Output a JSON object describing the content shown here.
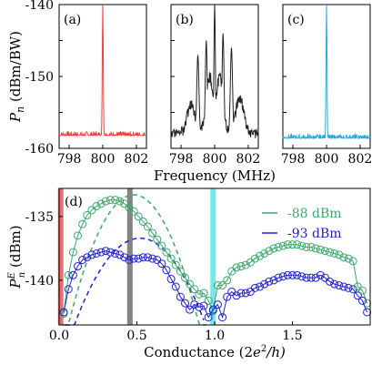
{
  "colors": {
    "red": "#ff3b3b",
    "black": "#222222",
    "cyan": "#22aaee",
    "green": "#3aa86b",
    "blue": "#2020d0",
    "marker_red": "#e86060",
    "marker_gray": "#777777",
    "marker_cyan": "#66e6e6"
  },
  "chart_data": [
    {
      "type": "line",
      "panel": "(a)",
      "x_ticks": [
        "798",
        "800",
        "802"
      ],
      "xlim": [
        797.4,
        802.6
      ],
      "y_ticks": [
        "-140",
        "-150",
        "-160"
      ],
      "ylim": [
        -160,
        -140
      ],
      "ylabel_main": "P",
      "ylabel_sub": "n",
      "ylabel_unit": " (dBm/BW)",
      "series": [
        {
          "color": "red",
          "noise_floor": -158.2,
          "peaks": [
            {
              "x": 800.0,
              "y": -140,
              "width": 0.04
            }
          ]
        }
      ]
    },
    {
      "type": "line",
      "panel": "(b)",
      "x_ticks": [
        "798",
        "800",
        "802"
      ],
      "xlim": [
        797.4,
        802.6
      ],
      "ylim": [
        -160,
        -140
      ],
      "xlabel": "Frequency (MHz)",
      "series": [
        {
          "color": "black",
          "noise_floor": -158.0,
          "peaks": [
            {
              "x": 800.0,
              "y": -140,
              "width": 0.06
            },
            {
              "x": 800.5,
              "y": -144,
              "width": 0.08
            },
            {
              "x": 799.5,
              "y": -145,
              "width": 0.08
            },
            {
              "x": 801.0,
              "y": -146,
              "width": 0.09
            },
            {
              "x": 799.0,
              "y": -147,
              "width": 0.09
            },
            {
              "x": 799.7,
              "y": -150,
              "width": 0.3
            },
            {
              "x": 800.3,
              "y": -150,
              "width": 0.3
            },
            {
              "x": 798.6,
              "y": -154,
              "width": 0.35
            },
            {
              "x": 801.5,
              "y": -153,
              "width": 0.35
            }
          ]
        }
      ]
    },
    {
      "type": "line",
      "panel": "(c)",
      "x_ticks": [
        "798",
        "800",
        "802"
      ],
      "xlim": [
        797.4,
        802.6
      ],
      "ylim": [
        -160,
        -140
      ],
      "series": [
        {
          "color": "cyan",
          "noise_floor": -158.6,
          "peaks": [
            {
              "x": 800.0,
              "y": -140,
              "width": 0.04
            }
          ]
        }
      ]
    },
    {
      "type": "line",
      "panel": "(d)",
      "xlim": [
        0,
        2.0
      ],
      "ylim": [
        -143.5,
        -132.8
      ],
      "x_ticks": [
        {
          "v": 0.0,
          "t": "0.0"
        },
        {
          "v": 0.5,
          "t": "0.5"
        },
        {
          "v": 1.0,
          "t": "1.0"
        },
        {
          "v": 1.5,
          "t": "1.5"
        }
      ],
      "y_ticks": [
        {
          "v": -135,
          "t": "-135"
        },
        {
          "v": -140,
          "t": "-140"
        }
      ],
      "xlabel_main": "Conductance (2",
      "xlabel_e": "e",
      "xlabel_sup": "2",
      "xlabel_end": "/h)",
      "ylabel_main": "P",
      "ylabel_sup": "E",
      "ylabel_sub": "n",
      "ylabel_unit": " (dBm)",
      "vertical_markers": [
        {
          "x": 0.01,
          "color": "marker_red"
        },
        {
          "x": 0.455,
          "color": "marker_gray"
        },
        {
          "x": 0.99,
          "color": "marker_cyan"
        }
      ],
      "legend_position": "top-right",
      "series": [
        {
          "name": "-88 dBm",
          "color": "green",
          "x": [
            0.03,
            0.06,
            0.09,
            0.12,
            0.15,
            0.18,
            0.21,
            0.24,
            0.27,
            0.3,
            0.33,
            0.36,
            0.39,
            0.42,
            0.45,
            0.48,
            0.51,
            0.54,
            0.57,
            0.6,
            0.63,
            0.66,
            0.69,
            0.72,
            0.75,
            0.78,
            0.81,
            0.84,
            0.87,
            0.9,
            0.93,
            0.96,
            0.99,
            1.02,
            1.05,
            1.08,
            1.11,
            1.14,
            1.17,
            1.2,
            1.23,
            1.26,
            1.29,
            1.32,
            1.35,
            1.38,
            1.41,
            1.44,
            1.47,
            1.5,
            1.53,
            1.56,
            1.59,
            1.62,
            1.65,
            1.68,
            1.71,
            1.74,
            1.77,
            1.8,
            1.83,
            1.86,
            1.89,
            1.92,
            1.95,
            1.98
          ],
          "y": [
            -142.6,
            -139.6,
            -137.8,
            -136.5,
            -135.6,
            -134.9,
            -134.5,
            -134.2,
            -134.0,
            -133.8,
            -133.7,
            -133.7,
            -133.8,
            -134.0,
            -134.3,
            -134.6,
            -135.0,
            -135.4,
            -135.8,
            -136.3,
            -136.8,
            -137.3,
            -137.8,
            -138.3,
            -138.8,
            -139.3,
            -139.8,
            -140.3,
            -140.7,
            -141.1,
            -141.0,
            -141.6,
            -142.4,
            -140.4,
            -140.4,
            -140.0,
            -139.3,
            -139.0,
            -138.9,
            -138.8,
            -138.6,
            -138.3,
            -138.1,
            -137.9,
            -137.7,
            -137.5,
            -137.4,
            -137.3,
            -137.2,
            -137.2,
            -137.2,
            -137.3,
            -137.4,
            -137.4,
            -137.5,
            -137.6,
            -137.7,
            -137.8,
            -137.9,
            -138.0,
            -138.2,
            -138.3,
            -138.5,
            -140.5,
            -140.8,
            -141.8
          ]
        },
        {
          "name": "-93 dBm",
          "color": "blue",
          "x": [
            0.03,
            0.06,
            0.09,
            0.12,
            0.15,
            0.18,
            0.21,
            0.24,
            0.27,
            0.3,
            0.33,
            0.36,
            0.39,
            0.42,
            0.45,
            0.48,
            0.51,
            0.54,
            0.57,
            0.6,
            0.63,
            0.66,
            0.69,
            0.72,
            0.75,
            0.78,
            0.81,
            0.84,
            0.87,
            0.9,
            0.93,
            0.96,
            0.99,
            1.02,
            1.05,
            1.08,
            1.11,
            1.14,
            1.17,
            1.2,
            1.23,
            1.26,
            1.29,
            1.32,
            1.35,
            1.38,
            1.41,
            1.44,
            1.47,
            1.5,
            1.53,
            1.56,
            1.59,
            1.62,
            1.65,
            1.68,
            1.71,
            1.74,
            1.77,
            1.8,
            1.83,
            1.86,
            1.89,
            1.92,
            1.95,
            1.98
          ],
          "y": [
            -142.5,
            -140.7,
            -139.6,
            -138.9,
            -138.4,
            -138.2,
            -138.0,
            -137.9,
            -137.8,
            -137.7,
            -137.8,
            -137.9,
            -138.0,
            -138.2,
            -138.4,
            -138.3,
            -138.3,
            -138.2,
            -138.2,
            -138.3,
            -138.4,
            -138.7,
            -139.2,
            -139.9,
            -140.5,
            -141.3,
            -141.8,
            -142.3,
            -141.9,
            -142.1,
            -142.0,
            -142.9,
            -142.3,
            -141.9,
            -142.9,
            -141.3,
            -140.9,
            -141.2,
            -141.0,
            -141.0,
            -140.9,
            -140.6,
            -140.5,
            -140.3,
            -140.1,
            -140.0,
            -139.8,
            -139.7,
            -139.6,
            -139.6,
            -139.6,
            -139.7,
            -139.8,
            -139.8,
            -139.8,
            -139.6,
            -139.8,
            -140.1,
            -140.3,
            -140.4,
            -140.5,
            -140.6,
            -140.7,
            -141.2,
            -141.6,
            -142.5
          ]
        }
      ],
      "fits": [
        {
          "color": "green",
          "peak_x": 0.48,
          "peak_y": -133.3,
          "x0": 0.02,
          "x1": 0.95
        },
        {
          "color": "blue",
          "peak_x": 0.52,
          "peak_y": -136.7,
          "x0": 0.04,
          "x1": 0.93
        }
      ]
    }
  ]
}
